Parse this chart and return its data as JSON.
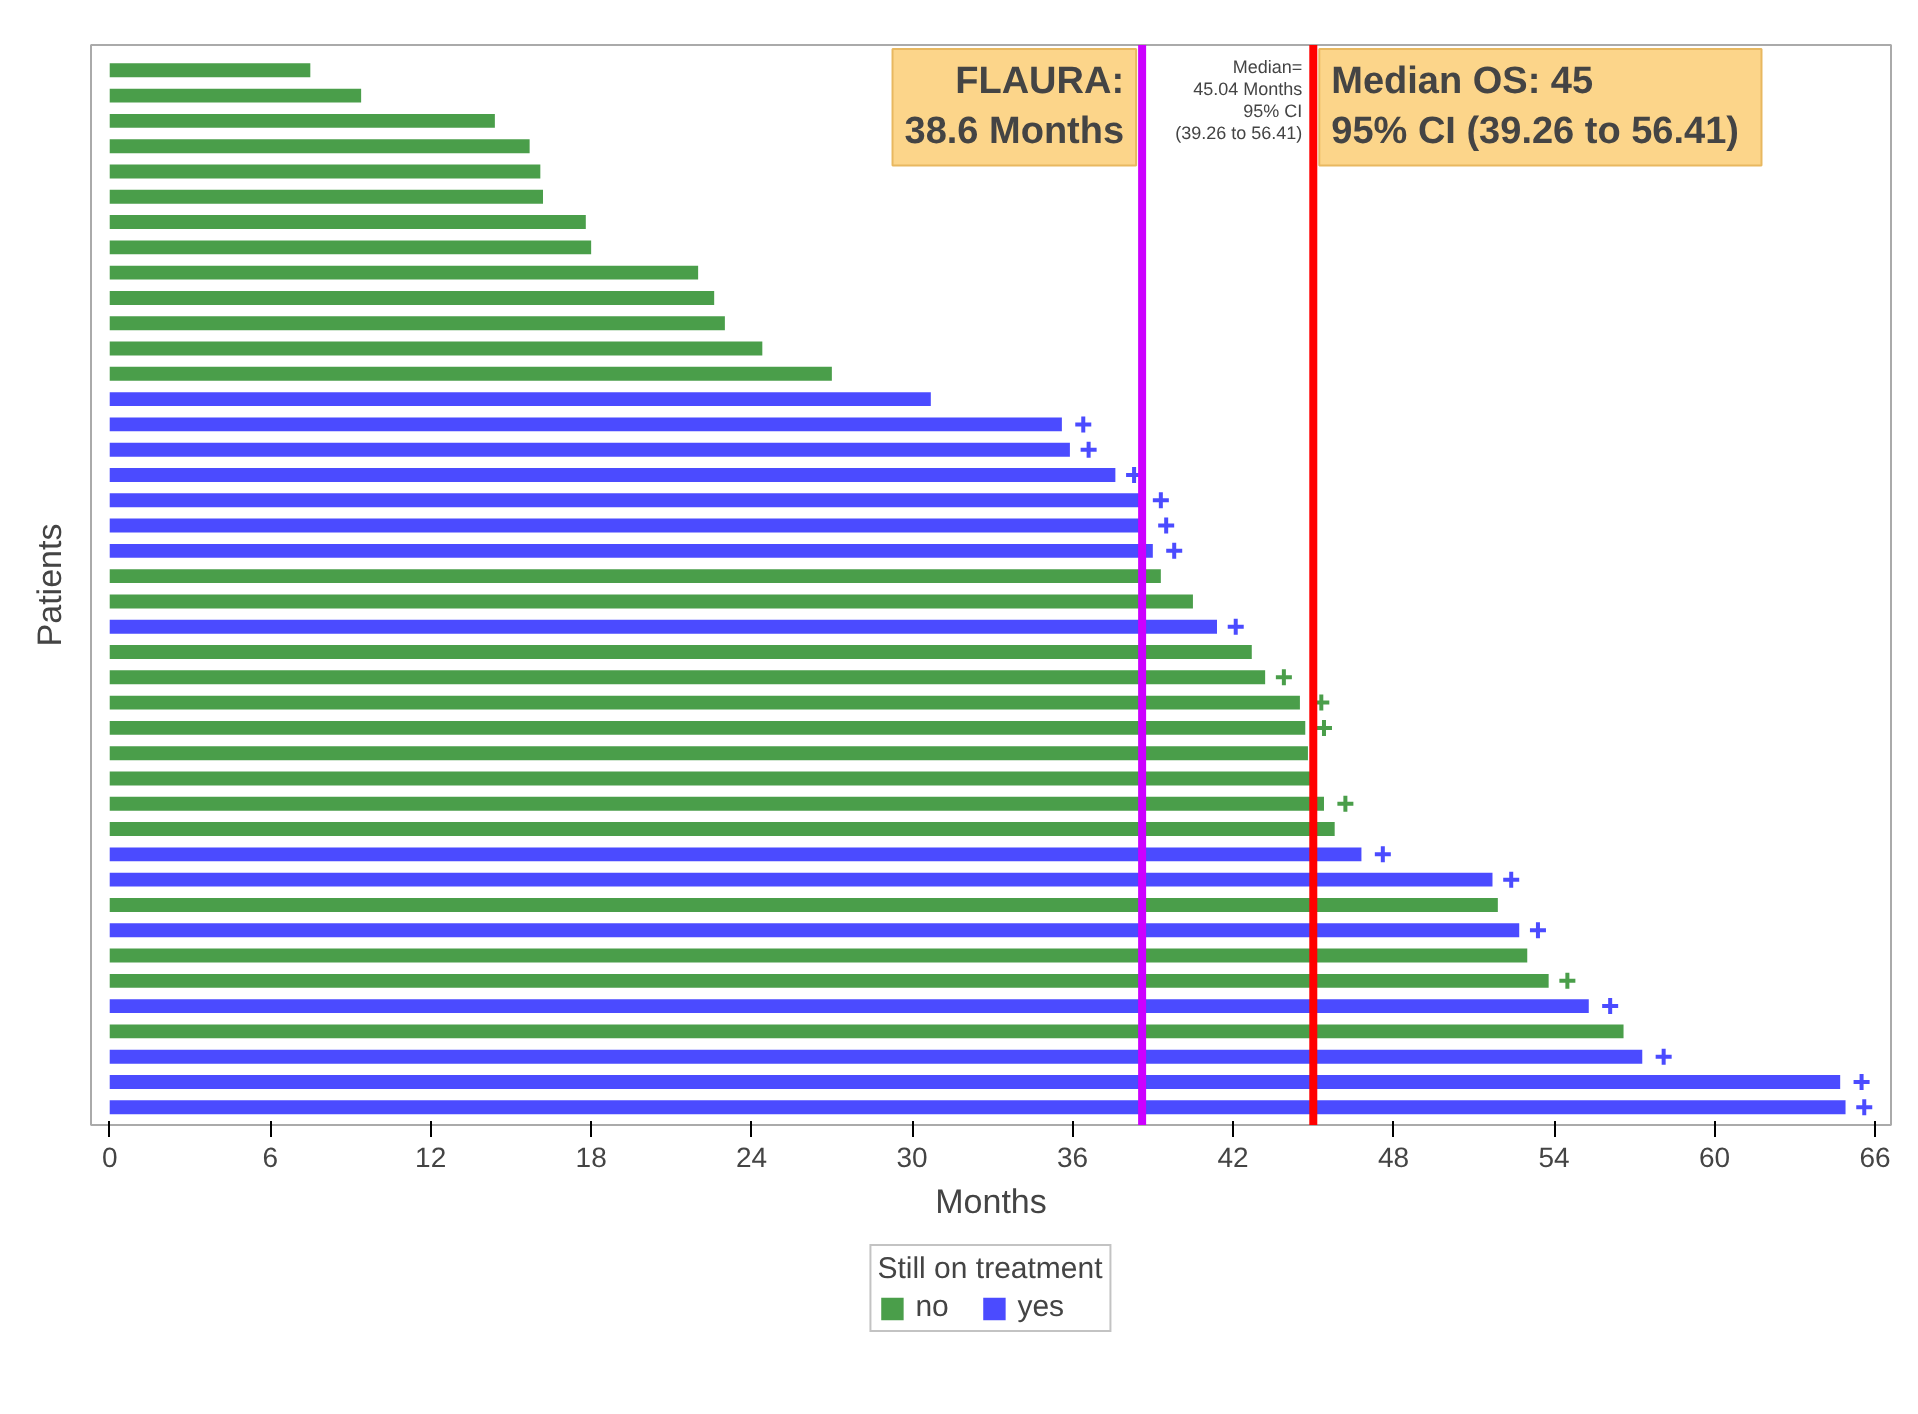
{
  "chart_data": {
    "type": "bar",
    "orientation": "horizontal",
    "xlabel": "Months",
    "ylabel": "Patients",
    "legend_title": "Still on treatment",
    "legend": "bottom",
    "grid": false,
    "categories": [
      null,
      null,
      null,
      null,
      null,
      null,
      null,
      null,
      null,
      null,
      null,
      null,
      null,
      null,
      null,
      null,
      null,
      null,
      null,
      null,
      null,
      null,
      null,
      null,
      null,
      null,
      null,
      null,
      null,
      null,
      null,
      null,
      null,
      null,
      null,
      null,
      null,
      null,
      null,
      null,
      null,
      null
    ],
    "xlim": [
      -0.7,
      66.6
    ],
    "xticks": [
      0,
      6,
      12,
      18,
      24,
      30,
      36,
      42,
      48,
      54,
      60,
      66
    ],
    "series": [
      {
        "name": "no",
        "color": "#4a9e4a",
        "values": [
          7.5,
          9.4,
          14.4,
          15.7,
          16.1,
          16.2,
          17.8,
          18.0,
          22.0,
          22.6,
          23.0,
          24.4,
          27.0,
          null,
          null,
          null,
          null,
          null,
          null,
          null,
          39.3,
          40.5,
          null,
          42.7,
          43.2,
          44.5,
          44.7,
          44.8,
          45.0,
          45.4,
          45.8,
          null,
          null,
          51.9,
          null,
          53.0,
          53.8,
          null,
          56.6,
          null,
          null,
          null
        ]
      },
      {
        "name": "yes",
        "color": "#4b4bff",
        "values": [
          null,
          null,
          null,
          null,
          null,
          null,
          null,
          null,
          null,
          null,
          null,
          null,
          null,
          30.7,
          35.6,
          35.9,
          37.6,
          38.5,
          38.5,
          39.0,
          null,
          null,
          41.4,
          null,
          null,
          null,
          null,
          null,
          null,
          null,
          null,
          46.8,
          51.7,
          null,
          52.7,
          null,
          null,
          55.3,
          null,
          57.3,
          64.7,
          64.9
        ]
      },
      {
        "type": "scatter",
        "marker": "cross",
        "color": "#4a9e4a",
        "values": [
          null,
          null,
          null,
          null,
          null,
          null,
          null,
          null,
          null,
          null,
          null,
          null,
          null,
          null,
          null,
          null,
          null,
          null,
          null,
          null,
          null,
          null,
          null,
          null,
          43.9,
          45.3,
          45.4,
          null,
          null,
          46.2,
          null,
          null,
          null,
          null,
          null,
          null,
          54.5,
          null,
          null,
          null,
          null,
          null
        ]
      },
      {
        "type": "scatter",
        "marker": "cross",
        "color": "#4b4bff",
        "values": [
          null,
          null,
          null,
          null,
          null,
          null,
          null,
          null,
          null,
          null,
          null,
          null,
          null,
          null,
          36.4,
          36.6,
          38.3,
          39.3,
          39.5,
          39.8,
          null,
          null,
          42.1,
          null,
          null,
          null,
          null,
          null,
          null,
          null,
          null,
          47.6,
          52.4,
          null,
          53.4,
          null,
          null,
          56.1,
          null,
          58.1,
          65.5,
          65.6
        ]
      }
    ],
    "ref_lines": [
      {
        "axis": "x",
        "value": 38.6,
        "label": "FLAURA:\n38.6 Months",
        "color": "#cc00ff"
      },
      {
        "axis": "x",
        "value": 45,
        "label": "Median OS: 45\n95%  CI (39.26 to 56.41)",
        "color": "#ff0000"
      }
    ],
    "annotations": [
      {
        "text": "Median=\n45.04 Months\n95% CI\n(39.26 to 56.41)",
        "x": 45.04
      }
    ]
  }
}
